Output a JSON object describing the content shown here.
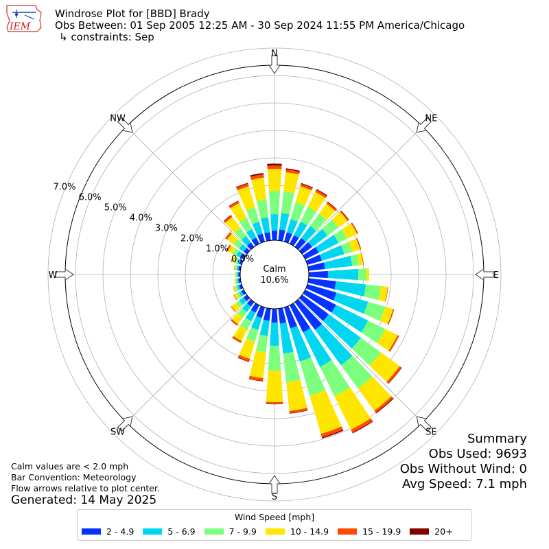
{
  "header": {
    "title": "Windrose Plot for [BBD] Brady",
    "obs_between": "Obs Between: 01 Sep 2005 12:25 AM - 30 Sep 2024 11:55 PM America/Chicago",
    "constraints": "↳ constraints: Sep",
    "logo_text": "IEM"
  },
  "notes": {
    "calm_def": "Calm values are < 2.0 mph",
    "bar_convention": "Bar Convention: Meteorology",
    "flow_arrows": "Flow arrows relative to plot center.",
    "generated": "Generated: 14 May 2025"
  },
  "summary": {
    "title": "Summary",
    "obs_used": "Obs Used: 9693",
    "obs_without_wind": "Obs Without Wind: 0",
    "avg_speed": "Avg Speed: 7.1 mph"
  },
  "chart_data": {
    "type": "windrose",
    "title": "Windrose Plot for [BBD] Brady",
    "calm_label": "Calm",
    "calm_value": "10.6%",
    "radial_unit": "%",
    "radial_ticks": [
      "0.0%",
      "1.0%",
      "2.0%",
      "3.0%",
      "4.0%",
      "5.0%",
      "6.0%",
      "7.0%"
    ],
    "radial_max": 7.0,
    "direction_labels": [
      "N",
      "NE",
      "E",
      "SE",
      "S",
      "SW",
      "W",
      "NW"
    ],
    "direction_angles_deg": [
      0,
      45,
      90,
      135,
      180,
      225,
      270,
      315
    ],
    "legend_title": "Wind Speed [mph]",
    "speed_bins": [
      {
        "label": "2 - 4.9",
        "color": "#0433ff"
      },
      {
        "label": "5 - 6.9",
        "color": "#00d6f0"
      },
      {
        "label": "7 - 9.9",
        "color": "#7cff7c"
      },
      {
        "label": "10 - 14.9",
        "color": "#ffe600"
      },
      {
        "label": "15 - 19.9",
        "color": "#ff4a00"
      },
      {
        "label": "20+",
        "color": "#800000"
      }
    ],
    "sector_width_deg": 10,
    "sectors": [
      {
        "dir": 0,
        "values": [
          0.35,
          0.6,
          0.85,
          0.8,
          0.12,
          0.07
        ]
      },
      {
        "dir": 10,
        "values": [
          0.4,
          0.6,
          0.8,
          0.7,
          0.1,
          0.04
        ]
      },
      {
        "dir": 20,
        "values": [
          0.35,
          0.5,
          0.65,
          0.6,
          0.09,
          0.03
        ]
      },
      {
        "dir": 30,
        "values": [
          0.35,
          0.55,
          0.6,
          0.6,
          0.09,
          0.03
        ]
      },
      {
        "dir": 40,
        "values": [
          0.4,
          0.55,
          0.55,
          0.45,
          0.07,
          0.02
        ]
      },
      {
        "dir": 50,
        "values": [
          0.45,
          0.7,
          0.5,
          0.4,
          0.05,
          0.02
        ]
      },
      {
        "dir": 60,
        "values": [
          0.55,
          0.8,
          0.35,
          0.4,
          0.04,
          0.01
        ]
      },
      {
        "dir": 70,
        "values": [
          0.55,
          0.85,
          0.3,
          0.3,
          0.03,
          0.01
        ]
      },
      {
        "dir": 80,
        "values": [
          0.6,
          1.0,
          0.25,
          0.15,
          0.02,
          0.0
        ]
      },
      {
        "dir": 90,
        "values": [
          0.7,
          1.1,
          0.3,
          0.1,
          0.0,
          0.0
        ]
      },
      {
        "dir": 100,
        "values": [
          1.0,
          1.1,
          0.55,
          0.25,
          0.02,
          0.0
        ]
      },
      {
        "dir": 110,
        "values": [
          1.1,
          1.2,
          0.65,
          0.3,
          0.03,
          0.01
        ]
      },
      {
        "dir": 120,
        "values": [
          1.25,
          1.3,
          0.7,
          0.5,
          0.05,
          0.01
        ]
      },
      {
        "dir": 130,
        "values": [
          1.2,
          1.45,
          0.9,
          0.85,
          0.08,
          0.02
        ]
      },
      {
        "dir": 140,
        "values": [
          1.25,
          1.6,
          1.05,
          1.0,
          0.09,
          0.03
        ]
      },
      {
        "dir": 150,
        "values": [
          1.1,
          1.4,
          1.2,
          1.35,
          0.12,
          0.03
        ]
      },
      {
        "dir": 160,
        "values": [
          0.8,
          1.25,
          1.3,
          1.45,
          0.13,
          0.04
        ]
      },
      {
        "dir": 170,
        "values": [
          0.55,
          1.1,
          1.05,
          1.05,
          0.08,
          0.02
        ]
      },
      {
        "dir": 180,
        "values": [
          0.5,
          0.85,
          0.9,
          1.15,
          0.07,
          0.01
        ]
      },
      {
        "dir": 190,
        "values": [
          0.45,
          0.55,
          0.6,
          0.95,
          0.1,
          0.02
        ]
      },
      {
        "dir": 200,
        "values": [
          0.4,
          0.45,
          0.45,
          0.65,
          0.1,
          0.02
        ]
      },
      {
        "dir": 210,
        "values": [
          0.3,
          0.35,
          0.35,
          0.45,
          0.07,
          0.01
        ]
      },
      {
        "dir": 220,
        "values": [
          0.2,
          0.25,
          0.25,
          0.3,
          0.05,
          0.01
        ]
      },
      {
        "dir": 230,
        "values": [
          0.15,
          0.2,
          0.15,
          0.2,
          0.03,
          0.0
        ]
      },
      {
        "dir": 240,
        "values": [
          0.1,
          0.1,
          0.1,
          0.1,
          0.02,
          0.0
        ]
      },
      {
        "dir": 250,
        "values": [
          0.1,
          0.08,
          0.08,
          0.06,
          0.01,
          0.0
        ]
      },
      {
        "dir": 260,
        "values": [
          0.08,
          0.06,
          0.05,
          0.04,
          0.0,
          0.0
        ]
      },
      {
        "dir": 270,
        "values": [
          0.07,
          0.05,
          0.05,
          0.03,
          0.0,
          0.0
        ]
      },
      {
        "dir": 280,
        "values": [
          0.08,
          0.06,
          0.05,
          0.04,
          0.01,
          0.0
        ]
      },
      {
        "dir": 290,
        "values": [
          0.1,
          0.08,
          0.1,
          0.1,
          0.03,
          0.0
        ]
      },
      {
        "dir": 300,
        "values": [
          0.15,
          0.15,
          0.15,
          0.2,
          0.05,
          0.01
        ]
      },
      {
        "dir": 310,
        "values": [
          0.15,
          0.2,
          0.25,
          0.3,
          0.06,
          0.01
        ]
      },
      {
        "dir": 320,
        "values": [
          0.2,
          0.3,
          0.35,
          0.5,
          0.07,
          0.02
        ]
      },
      {
        "dir": 330,
        "values": [
          0.25,
          0.35,
          0.45,
          0.6,
          0.08,
          0.02
        ]
      },
      {
        "dir": 340,
        "values": [
          0.3,
          0.45,
          0.55,
          0.8,
          0.1,
          0.03
        ]
      },
      {
        "dir": 350,
        "values": [
          0.3,
          0.55,
          0.65,
          0.8,
          0.12,
          0.05
        ]
      }
    ]
  }
}
